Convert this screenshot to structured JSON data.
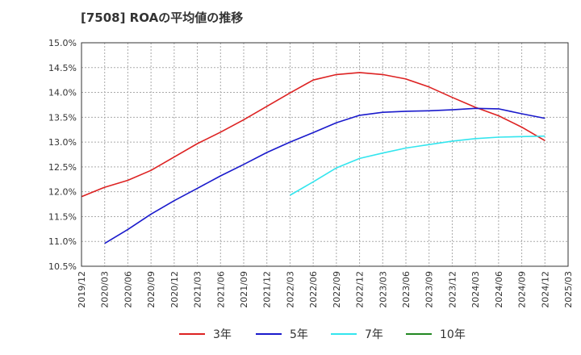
{
  "chart_data": {
    "type": "line",
    "title": "[7508]  ROAの平均値の推移",
    "xlabel": "",
    "ylabel": "",
    "ylim": [
      10.5,
      15.0
    ],
    "yticks": [
      10.5,
      11.0,
      11.5,
      12.0,
      12.5,
      13.0,
      13.5,
      14.0,
      14.5,
      15.0
    ],
    "ytick_labels": [
      "10.5%",
      "11.0%",
      "11.5%",
      "12.0%",
      "12.5%",
      "13.0%",
      "13.5%",
      "14.0%",
      "14.5%",
      "15.0%"
    ],
    "xticks": [
      "2019/12",
      "2020/03",
      "2020/06",
      "2020/09",
      "2020/12",
      "2021/03",
      "2021/06",
      "2021/09",
      "2021/12",
      "2022/03",
      "2022/06",
      "2022/09",
      "2022/12",
      "2023/03",
      "2023/06",
      "2023/09",
      "2023/12",
      "2024/03",
      "2024/06",
      "2024/09",
      "2024/12",
      "2025/03"
    ],
    "grid": true,
    "legend_position": "bottom",
    "series": [
      {
        "name": "3年",
        "color": "#dd2222",
        "x": [
          "2019/12",
          "2020/03",
          "2020/06",
          "2020/09",
          "2020/12",
          "2021/03",
          "2021/06",
          "2021/09",
          "2021/12",
          "2022/03",
          "2022/06",
          "2022/09",
          "2022/12",
          "2023/03",
          "2023/06",
          "2023/09",
          "2023/12",
          "2024/03",
          "2024/06",
          "2024/09",
          "2024/12"
        ],
        "values": [
          11.9,
          12.09,
          12.23,
          12.43,
          12.7,
          12.97,
          13.2,
          13.45,
          13.72,
          13.99,
          14.25,
          14.36,
          14.4,
          14.36,
          14.27,
          14.11,
          13.9,
          13.7,
          13.53,
          13.3,
          13.03
        ]
      },
      {
        "name": "5年",
        "color": "#1a1acc",
        "x": [
          "2020/03",
          "2020/06",
          "2020/09",
          "2020/12",
          "2021/03",
          "2021/06",
          "2021/09",
          "2021/12",
          "2022/03",
          "2022/06",
          "2022/09",
          "2022/12",
          "2023/03",
          "2023/06",
          "2023/09",
          "2023/12",
          "2024/03",
          "2024/06",
          "2024/09",
          "2024/12"
        ],
        "values": [
          10.96,
          11.24,
          11.55,
          11.82,
          12.07,
          12.32,
          12.55,
          12.79,
          13.0,
          13.19,
          13.39,
          13.54,
          13.6,
          13.62,
          13.63,
          13.65,
          13.68,
          13.67,
          13.57,
          13.48
        ]
      },
      {
        "name": "7年",
        "color": "#33e5ee",
        "x": [
          "2022/03",
          "2022/06",
          "2022/09",
          "2022/12",
          "2023/03",
          "2023/06",
          "2023/09",
          "2023/12",
          "2024/03",
          "2024/06",
          "2024/09",
          "2024/12"
        ],
        "values": [
          11.93,
          12.2,
          12.48,
          12.67,
          12.78,
          12.88,
          12.95,
          13.02,
          13.07,
          13.1,
          13.11,
          13.12
        ]
      },
      {
        "name": "10年",
        "color": "#228822",
        "x": [],
        "values": []
      }
    ]
  }
}
